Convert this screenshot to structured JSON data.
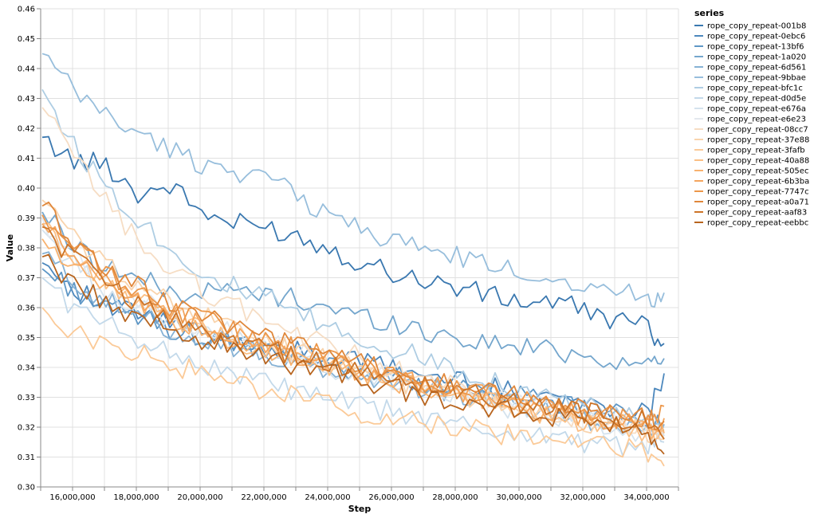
{
  "chart_data": {
    "type": "line",
    "xlabel": "Step",
    "ylabel": "Value",
    "x_ticks": [
      16000000,
      18000000,
      20000000,
      22000000,
      24000000,
      26000000,
      28000000,
      30000000,
      32000000,
      34000000
    ],
    "x_tick_labels": [
      "16,000,000",
      "18,000,000",
      "20,000,000",
      "22,000,000",
      "24,000,000",
      "26,000,000",
      "28,000,000",
      "30,000,000",
      "32,000,000",
      "34,000,000"
    ],
    "y_ticks": [
      0.3,
      0.31,
      0.32,
      0.33,
      0.34,
      0.35,
      0.36,
      0.37,
      0.38,
      0.39,
      0.4,
      0.41,
      0.42,
      0.43,
      0.44,
      0.45,
      0.46
    ],
    "y_tick_labels": [
      "0.30",
      "0.31",
      "0.32",
      "0.33",
      "0.34",
      "0.35",
      "0.36",
      "0.37",
      "0.38",
      "0.39",
      "0.40",
      "0.41",
      "0.42",
      "0.43",
      "0.44",
      "0.45",
      "0.46"
    ],
    "xlim": [
      15000000,
      35000000
    ],
    "ylim": [
      0.3,
      0.46
    ],
    "grid": true,
    "legend": {
      "title": "series",
      "position": "right"
    },
    "x": [
      15050000,
      16050000,
      17050000,
      18050000,
      19050000,
      20050000,
      21050000,
      22050000,
      23050000,
      24050000,
      25050000,
      26050000,
      27050000,
      28050000,
      29050000,
      30050000,
      31050000,
      32050000,
      33050000,
      34050000,
      34550000
    ],
    "series": [
      {
        "name": "rope_copy_repeat-001b8",
        "color": "#3a78b0",
        "values": [
          0.417,
          0.409,
          0.408,
          0.398,
          0.401,
          0.392,
          0.388,
          0.387,
          0.384,
          0.38,
          0.375,
          0.372,
          0.369,
          0.367,
          0.364,
          0.362,
          0.362,
          0.359,
          0.356,
          0.353,
          0.348
        ]
      },
      {
        "name": "rope_copy_repeat-0ebc6",
        "color": "#4d88bd",
        "values": [
          0.375,
          0.367,
          0.36,
          0.358,
          0.355,
          0.351,
          0.349,
          0.347,
          0.345,
          0.343,
          0.342,
          0.34,
          0.337,
          0.336,
          0.333,
          0.332,
          0.331,
          0.328,
          0.326,
          0.325,
          0.338
        ]
      },
      {
        "name": "rope_copy_repeat-13bf6",
        "color": "#5e97c6",
        "values": [
          0.373,
          0.366,
          0.36,
          0.357,
          0.353,
          0.35,
          0.348,
          0.345,
          0.343,
          0.341,
          0.339,
          0.337,
          0.335,
          0.333,
          0.331,
          0.33,
          0.328,
          0.326,
          0.324,
          0.323,
          0.319
        ]
      },
      {
        "name": "rope_copy_repeat-1a020",
        "color": "#74a6cd",
        "values": [
          0.392,
          0.381,
          0.374,
          0.37,
          0.365,
          0.365,
          0.366,
          0.364,
          0.363,
          0.36,
          0.357,
          0.355,
          0.352,
          0.35,
          0.348,
          0.347,
          0.346,
          0.344,
          0.342,
          0.341,
          0.343
        ]
      },
      {
        "name": "rope_copy_repeat-6d561",
        "color": "#86b2d5",
        "values": [
          0.378,
          0.369,
          0.362,
          0.357,
          0.353,
          0.35,
          0.347,
          0.344,
          0.341,
          0.339,
          0.337,
          0.335,
          0.333,
          0.331,
          0.329,
          0.327,
          0.325,
          0.323,
          0.321,
          0.32,
          0.321
        ]
      },
      {
        "name": "rope_copy_repeat-9bbae",
        "color": "#97bedc",
        "values": [
          0.445,
          0.432,
          0.425,
          0.418,
          0.413,
          0.408,
          0.406,
          0.404,
          0.397,
          0.391,
          0.387,
          0.382,
          0.38,
          0.377,
          0.374,
          0.372,
          0.37,
          0.368,
          0.366,
          0.363,
          0.365
        ]
      },
      {
        "name": "rope_copy_repeat-bfc1c",
        "color": "#aecde3",
        "values": [
          0.433,
          0.414,
          0.401,
          0.39,
          0.38,
          0.372,
          0.367,
          0.363,
          0.358,
          0.353,
          0.349,
          0.346,
          0.343,
          0.34,
          0.336,
          0.333,
          0.33,
          0.327,
          0.324,
          0.322,
          0.32
        ]
      },
      {
        "name": "rope_copy_repeat-d0d5e",
        "color": "#c3d9ea",
        "values": [
          0.37,
          0.36,
          0.354,
          0.35,
          0.345,
          0.341,
          0.338,
          0.335,
          0.332,
          0.329,
          0.327,
          0.325,
          0.323,
          0.321,
          0.319,
          0.318,
          0.317,
          0.315,
          0.314,
          0.313,
          0.315
        ]
      },
      {
        "name": "rope_copy_repeat-e676a",
        "color": "#d5e3ee",
        "values": [
          0.386,
          0.374,
          0.366,
          0.36,
          0.356,
          0.352,
          0.349,
          0.346,
          0.343,
          0.34,
          0.337,
          0.335,
          0.332,
          0.33,
          0.328,
          0.326,
          0.324,
          0.322,
          0.32,
          0.318,
          0.317
        ]
      },
      {
        "name": "rope_copy_repeat-e6e23",
        "color": "#e3e8ee",
        "values": [
          0.39,
          0.377,
          0.369,
          0.363,
          0.358,
          0.354,
          0.351,
          0.348,
          0.345,
          0.342,
          0.339,
          0.337,
          0.334,
          0.332,
          0.33,
          0.328,
          0.326,
          0.324,
          0.322,
          0.32,
          0.319
        ]
      },
      {
        "name": "roper_copy_repeat-08cc7",
        "color": "#f6ddc4",
        "values": [
          0.427,
          0.41,
          0.396,
          0.382,
          0.373,
          0.366,
          0.361,
          0.356,
          0.351,
          0.347,
          0.343,
          0.34,
          0.336,
          0.333,
          0.33,
          0.327,
          0.324,
          0.322,
          0.32,
          0.318,
          0.316
        ]
      },
      {
        "name": "roper_copy_repeat-37e88",
        "color": "#f9d4ad",
        "values": [
          0.396,
          0.383,
          0.375,
          0.368,
          0.362,
          0.357,
          0.353,
          0.349,
          0.345,
          0.342,
          0.339,
          0.336,
          0.333,
          0.331,
          0.328,
          0.326,
          0.324,
          0.322,
          0.32,
          0.318,
          0.316
        ]
      },
      {
        "name": "roper_copy_repeat-3fafb",
        "color": "#fbca98",
        "values": [
          0.36,
          0.352,
          0.347,
          0.345,
          0.341,
          0.338,
          0.335,
          0.332,
          0.33,
          0.327,
          0.325,
          0.323,
          0.321,
          0.32,
          0.318,
          0.317,
          0.315,
          0.314,
          0.313,
          0.312,
          0.307
        ]
      },
      {
        "name": "roper_copy_repeat-40a88",
        "color": "#fbbf84",
        "values": [
          0.388,
          0.376,
          0.368,
          0.362,
          0.357,
          0.353,
          0.349,
          0.346,
          0.343,
          0.34,
          0.337,
          0.335,
          0.332,
          0.33,
          0.328,
          0.326,
          0.324,
          0.322,
          0.32,
          0.318,
          0.319
        ]
      },
      {
        "name": "roper_copy_repeat-505ec",
        "color": "#f8b26f",
        "values": [
          0.383,
          0.373,
          0.366,
          0.361,
          0.356,
          0.352,
          0.349,
          0.346,
          0.343,
          0.34,
          0.337,
          0.335,
          0.333,
          0.331,
          0.329,
          0.327,
          0.325,
          0.323,
          0.321,
          0.32,
          0.318
        ]
      },
      {
        "name": "roper_copy_repeat-6b3ba",
        "color": "#f4a55e",
        "values": [
          0.388,
          0.377,
          0.369,
          0.363,
          0.358,
          0.354,
          0.35,
          0.347,
          0.344,
          0.341,
          0.339,
          0.336,
          0.334,
          0.332,
          0.33,
          0.328,
          0.326,
          0.324,
          0.322,
          0.321,
          0.323
        ]
      },
      {
        "name": "roper_copy_repeat-7747c",
        "color": "#ec974a",
        "values": [
          0.391,
          0.38,
          0.372,
          0.365,
          0.36,
          0.356,
          0.352,
          0.349,
          0.346,
          0.343,
          0.34,
          0.338,
          0.335,
          0.333,
          0.331,
          0.329,
          0.327,
          0.325,
          0.323,
          0.322,
          0.327
        ]
      },
      {
        "name": "roper_copy_repeat-a0a71",
        "color": "#e0873a",
        "values": [
          0.394,
          0.382,
          0.373,
          0.367,
          0.362,
          0.357,
          0.353,
          0.35,
          0.347,
          0.344,
          0.341,
          0.339,
          0.336,
          0.334,
          0.332,
          0.33,
          0.328,
          0.326,
          0.324,
          0.323,
          0.322
        ]
      },
      {
        "name": "roper_copy_repeat-aaf83",
        "color": "#cc7428",
        "values": [
          0.387,
          0.376,
          0.368,
          0.362,
          0.357,
          0.353,
          0.349,
          0.346,
          0.343,
          0.341,
          0.338,
          0.336,
          0.334,
          0.332,
          0.33,
          0.328,
          0.327,
          0.325,
          0.323,
          0.322,
          0.316
        ]
      },
      {
        "name": "roper_copy_repeat-eebbc",
        "color": "#b8651f",
        "values": [
          0.377,
          0.367,
          0.362,
          0.357,
          0.352,
          0.349,
          0.346,
          0.343,
          0.341,
          0.338,
          0.336,
          0.333,
          0.331,
          0.329,
          0.327,
          0.325,
          0.324,
          0.322,
          0.32,
          0.319,
          0.311
        ]
      }
    ]
  }
}
